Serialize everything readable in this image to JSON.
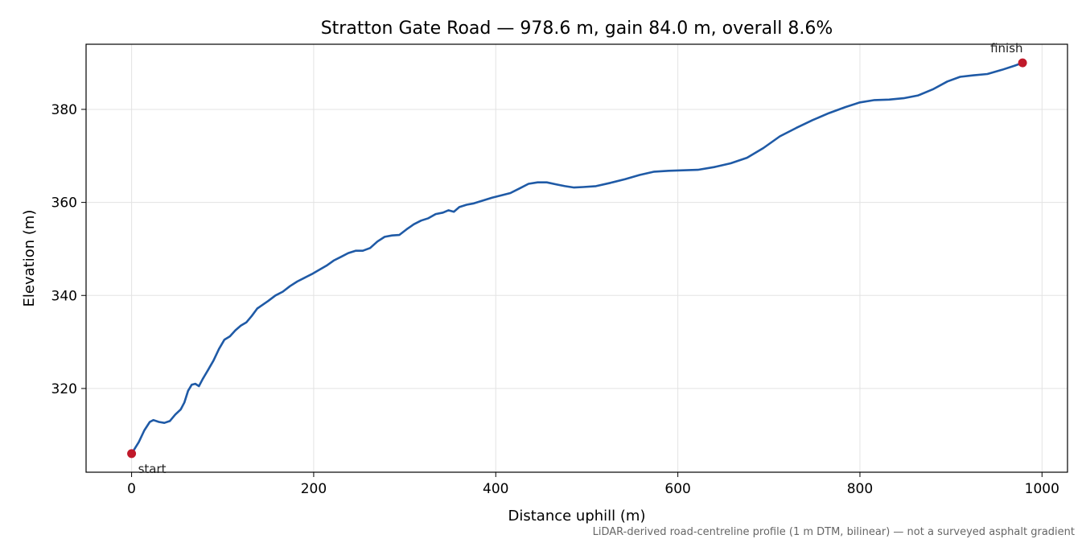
{
  "chart_data": {
    "type": "line",
    "title": "Stratton Gate Road — 978.6 m, gain 84.0 m, overall 8.6%",
    "xlabel": "Distance uphill (m)",
    "ylabel": "Elevation (m)",
    "xlim": [
      -50,
      1028
    ],
    "ylim": [
      302,
      394
    ],
    "x_ticks": [
      0,
      200,
      400,
      600,
      800,
      1000
    ],
    "y_ticks": [
      320,
      340,
      360,
      380
    ],
    "x_tick_labels": [
      "0",
      "200",
      "400",
      "600",
      "800",
      "1000"
    ],
    "y_tick_labels": [
      "320",
      "340",
      "360",
      "380"
    ],
    "grid": true,
    "footnote": "LiDAR-derived road-centreline profile (1 m DTM, bilinear) — not a surveyed asphalt gradient",
    "series": [
      {
        "color": "#1f5aa6",
        "points": [
          [
            0,
            306.0
          ],
          [
            8,
            308.5
          ],
          [
            14,
            311.0
          ],
          [
            20,
            312.8
          ],
          [
            24,
            313.2
          ],
          [
            30,
            312.8
          ],
          [
            36,
            312.6
          ],
          [
            42,
            313.0
          ],
          [
            48,
            314.4
          ],
          [
            54,
            315.5
          ],
          [
            58,
            317.0
          ],
          [
            62,
            319.5
          ],
          [
            66,
            320.8
          ],
          [
            70,
            321.0
          ],
          [
            74,
            320.5
          ],
          [
            78,
            322.0
          ],
          [
            84,
            324.0
          ],
          [
            90,
            326.0
          ],
          [
            96,
            328.5
          ],
          [
            102,
            330.5
          ],
          [
            108,
            331.2
          ],
          [
            114,
            332.5
          ],
          [
            120,
            333.5
          ],
          [
            126,
            334.2
          ],
          [
            132,
            335.6
          ],
          [
            138,
            337.2
          ],
          [
            144,
            338.0
          ],
          [
            150,
            338.8
          ],
          [
            158,
            340.0
          ],
          [
            166,
            340.8
          ],
          [
            174,
            342.0
          ],
          [
            182,
            343.0
          ],
          [
            190,
            343.8
          ],
          [
            198,
            344.6
          ],
          [
            206,
            345.5
          ],
          [
            214,
            346.4
          ],
          [
            222,
            347.5
          ],
          [
            230,
            348.3
          ],
          [
            238,
            349.1
          ],
          [
            246,
            349.6
          ],
          [
            254,
            349.6
          ],
          [
            262,
            350.2
          ],
          [
            270,
            351.6
          ],
          [
            278,
            352.6
          ],
          [
            286,
            352.9
          ],
          [
            294,
            353.0
          ],
          [
            302,
            354.2
          ],
          [
            310,
            355.3
          ],
          [
            318,
            356.1
          ],
          [
            326,
            356.6
          ],
          [
            334,
            357.5
          ],
          [
            342,
            357.8
          ],
          [
            348,
            358.3
          ],
          [
            354,
            358.0
          ],
          [
            360,
            359.0
          ],
          [
            368,
            359.5
          ],
          [
            376,
            359.8
          ],
          [
            386,
            360.4
          ],
          [
            396,
            361.0
          ],
          [
            406,
            361.5
          ],
          [
            416,
            362.0
          ],
          [
            426,
            363.0
          ],
          [
            436,
            364.0
          ],
          [
            446,
            364.3
          ],
          [
            456,
            364.3
          ],
          [
            466,
            363.9
          ],
          [
            476,
            363.5
          ],
          [
            486,
            363.2
          ],
          [
            496,
            363.3
          ],
          [
            510,
            363.5
          ],
          [
            526,
            364.2
          ],
          [
            542,
            365.0
          ],
          [
            558,
            365.9
          ],
          [
            574,
            366.6
          ],
          [
            590,
            366.8
          ],
          [
            606,
            366.9
          ],
          [
            622,
            367.0
          ],
          [
            640,
            367.6
          ],
          [
            658,
            368.4
          ],
          [
            676,
            369.6
          ],
          [
            694,
            371.7
          ],
          [
            712,
            374.2
          ],
          [
            730,
            376.0
          ],
          [
            748,
            377.7
          ],
          [
            766,
            379.2
          ],
          [
            784,
            380.5
          ],
          [
            800,
            381.5
          ],
          [
            816,
            382.0
          ],
          [
            832,
            382.1
          ],
          [
            848,
            382.4
          ],
          [
            864,
            383.0
          ],
          [
            880,
            384.3
          ],
          [
            896,
            386.0
          ],
          [
            910,
            387.0
          ],
          [
            924,
            387.3
          ],
          [
            940,
            387.6
          ],
          [
            956,
            388.5
          ],
          [
            970,
            389.4
          ],
          [
            978.6,
            390.0
          ]
        ]
      }
    ],
    "markers": [
      {
        "label": "start",
        "x": 0,
        "y": 306.0,
        "color": "#c0192a",
        "label_anchor": "below-right"
      },
      {
        "label": "finish",
        "x": 978.6,
        "y": 390.0,
        "color": "#c0192a",
        "label_anchor": "above-left"
      }
    ]
  }
}
